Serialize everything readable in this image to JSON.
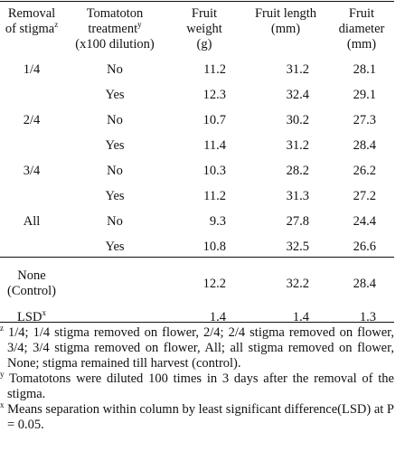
{
  "table": {
    "headers": {
      "removal_line1": "Removal",
      "removal_line2": "of stigma",
      "removal_mark": "z",
      "treat_line1": "Tomatoton",
      "treat_line2": "treatment",
      "treat_mark": "y",
      "treat_line3": "(x100 dilution)",
      "weight_line1": "Fruit",
      "weight_line2": "weight",
      "weight_line3": "(g)",
      "length_line1": "Fruit length",
      "length_line2": "(mm)",
      "diam_line1": "Fruit",
      "diam_line2": "diameter",
      "diam_line3": "(mm)"
    },
    "rows": [
      {
        "removal": "1/4",
        "treatment": "No",
        "weight": "11.2",
        "length": "31.2",
        "diameter": "28.1"
      },
      {
        "removal": "",
        "treatment": "Yes",
        "weight": "12.3",
        "length": "32.4",
        "diameter": "29.1"
      },
      {
        "removal": "2/4",
        "treatment": "No",
        "weight": "10.7",
        "length": "30.2",
        "diameter": "27.3"
      },
      {
        "removal": "",
        "treatment": "Yes",
        "weight": "11.4",
        "length": "31.2",
        "diameter": "28.4"
      },
      {
        "removal": "3/4",
        "treatment": "No",
        "weight": "10.3",
        "length": "28.2",
        "diameter": "26.2"
      },
      {
        "removal": "",
        "treatment": "Yes",
        "weight": "11.2",
        "length": "31.3",
        "diameter": "27.2"
      },
      {
        "removal": "All",
        "treatment": "No",
        "weight": "9.3",
        "length": "27.8",
        "diameter": "24.4"
      },
      {
        "removal": "",
        "treatment": "Yes",
        "weight": "10.8",
        "length": "32.5",
        "diameter": "26.6"
      }
    ],
    "control": {
      "label_line1": "None",
      "label_line2": "(Control)",
      "weight": "12.2",
      "length": "32.2",
      "diameter": "28.4"
    },
    "lsd": {
      "label": "LSD",
      "mark": "x",
      "weight": "1.4",
      "length": "1.4",
      "diameter": "1.3"
    }
  },
  "footnotes": [
    {
      "mark": "z",
      "text": " 1/4; 1/4 stigma removed on flower, 2/4; 2/4 stigma removed on flower, 3/4; 3/4 stigma removed on flower, All; all stigma removed on flower, None; stigma remained till harvest (control)."
    },
    {
      "mark": "y",
      "text": " Tomatotons were diluted 100 times in 3 days after the removal of the stigma."
    },
    {
      "mark": "x",
      "text": " Means separation within column by least significant difference(LSD) at P = 0.05."
    }
  ]
}
